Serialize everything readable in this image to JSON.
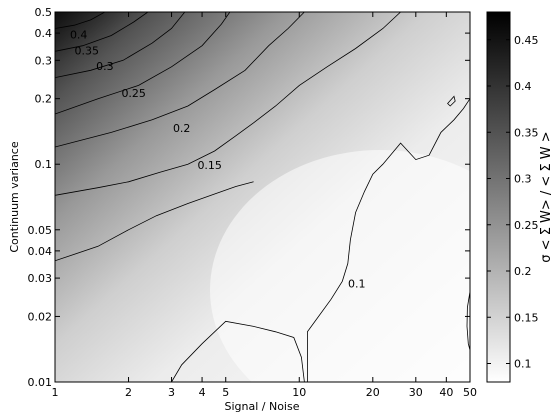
{
  "chart_data": {
    "type": "heatmap",
    "subtype": "filled-contour",
    "xlabel": "Signal / Noise",
    "ylabel": "Continuum variance",
    "x_scale": "log",
    "y_scale": "log",
    "xlim": [
      1,
      50
    ],
    "ylim": [
      0.01,
      0.5
    ],
    "x_ticks": [
      1,
      2,
      3,
      4,
      5,
      10,
      20,
      30,
      40,
      50
    ],
    "x_tick_labels": [
      "1",
      "2",
      "3",
      "4",
      "5",
      "10",
      "20",
      "30",
      "40",
      "50"
    ],
    "y_ticks": [
      0.01,
      0.02,
      0.03,
      0.04,
      0.05,
      0.1,
      0.2,
      0.3,
      0.4,
      0.5
    ],
    "y_tick_labels": [
      "0.01",
      "0.02",
      "0.03",
      "0.04",
      "0.05",
      "0.1",
      "0.2",
      "0.3",
      "0.4",
      "0.5"
    ],
    "colormap": "gray (white = low, black = high)",
    "colorbar": {
      "label": "σ < Σ W> / < Σ W >",
      "range": [
        0.08,
        0.48
      ],
      "ticks": [
        0.1,
        0.15,
        0.2,
        0.25,
        0.3,
        0.35,
        0.4,
        0.45
      ],
      "tick_labels": [
        "0.1",
        "0.15",
        "0.2",
        "0.25",
        "0.3",
        "0.35",
        "0.4",
        "0.45"
      ]
    },
    "contours": [
      {
        "level": 0.4,
        "label": "0.4",
        "label_at": [
          1.25,
          0.39
        ],
        "points": [
          [
            1,
            0.42
          ],
          [
            1.2,
            0.435
          ],
          [
            1.4,
            0.46
          ],
          [
            1.6,
            0.5
          ]
        ]
      },
      {
        "level": 0.35,
        "label": "0.35",
        "label_at": [
          1.35,
          0.33
        ],
        "points": [
          [
            1,
            0.33
          ],
          [
            1.3,
            0.35
          ],
          [
            1.7,
            0.39
          ],
          [
            2.1,
            0.45
          ],
          [
            2.4,
            0.5
          ]
        ]
      },
      {
        "level": 0.3,
        "label": "0.3",
        "label_at": [
          1.6,
          0.28
        ],
        "points": [
          [
            1,
            0.25
          ],
          [
            1.4,
            0.27
          ],
          [
            1.9,
            0.3
          ],
          [
            2.5,
            0.36
          ],
          [
            3.0,
            0.42
          ],
          [
            3.4,
            0.5
          ]
        ]
      },
      {
        "level": 0.25,
        "label": "0.25",
        "label_at": [
          2.1,
          0.21
        ],
        "points": [
          [
            1,
            0.17
          ],
          [
            1.5,
            0.2
          ],
          [
            2.2,
            0.23
          ],
          [
            3.0,
            0.28
          ],
          [
            4.0,
            0.35
          ],
          [
            4.8,
            0.44
          ],
          [
            5.2,
            0.5
          ]
        ]
      },
      {
        "level": 0.2,
        "label": "0.2",
        "label_at": [
          3.3,
          0.145
        ],
        "points": [
          [
            1,
            0.12
          ],
          [
            1.7,
            0.14
          ],
          [
            2.5,
            0.16
          ],
          [
            3.5,
            0.185
          ],
          [
            4.5,
            0.22
          ],
          [
            6.0,
            0.27
          ],
          [
            7.5,
            0.35
          ],
          [
            9.0,
            0.42
          ],
          [
            10.5,
            0.5
          ]
        ]
      },
      {
        "level": 0.15,
        "label": "0.15",
        "label_at": [
          4.3,
          0.098
        ],
        "points": [
          [
            1,
            0.072
          ],
          [
            1.5,
            0.078
          ],
          [
            2.0,
            0.083
          ],
          [
            2.7,
            0.092
          ],
          [
            3.5,
            0.1
          ],
          [
            4.5,
            0.115
          ],
          [
            5.5,
            0.135
          ],
          [
            6.5,
            0.155
          ],
          [
            8.0,
            0.185
          ],
          [
            10.0,
            0.23
          ],
          [
            13.0,
            0.28
          ],
          [
            17.0,
            0.34
          ],
          [
            22.0,
            0.42
          ],
          [
            26.0,
            0.5
          ]
        ]
      },
      {
        "level": 0.1,
        "label": "0.1",
        "label_at": [
          17.2,
          0.028
        ],
        "points": [
          [
            1,
            0.036
          ],
          [
            1.5,
            0.042
          ],
          [
            2.0,
            0.05
          ],
          [
            2.6,
            0.058
          ],
          [
            3.5,
            0.066
          ],
          [
            4.5,
            0.073
          ],
          [
            5.5,
            0.079
          ],
          [
            6.5,
            0.083
          ]
        ]
      },
      {
        "level": 0.1,
        "label": "",
        "label_at": null,
        "points": [
          [
            10.8,
            0.01
          ],
          [
            10.8,
            0.017
          ],
          [
            12.0,
            0.02
          ],
          [
            13.5,
            0.024
          ],
          [
            15.0,
            0.029
          ],
          [
            15.8,
            0.035
          ],
          [
            16.2,
            0.045
          ],
          [
            17.0,
            0.06
          ],
          [
            18.5,
            0.075
          ],
          [
            20.0,
            0.09
          ],
          [
            22.0,
            0.1
          ],
          [
            26.0,
            0.125
          ],
          [
            30.0,
            0.105
          ],
          [
            34.0,
            0.11
          ],
          [
            38.0,
            0.14
          ],
          [
            43.0,
            0.16
          ],
          [
            47.0,
            0.18
          ],
          [
            50.0,
            0.2
          ]
        ]
      },
      {
        "level": 0.1,
        "label": "",
        "label_at": null,
        "points": [
          [
            3.0,
            0.01
          ],
          [
            3.3,
            0.012
          ],
          [
            4.0,
            0.015
          ],
          [
            5.0,
            0.019
          ],
          [
            6.5,
            0.018
          ],
          [
            8.0,
            0.017
          ],
          [
            9.5,
            0.016
          ],
          [
            10.2,
            0.013
          ],
          [
            10.5,
            0.01
          ]
        ]
      },
      {
        "level": 0.1,
        "label": "",
        "label_at": null,
        "closed": true,
        "points": [
          [
            40.5,
            0.19
          ],
          [
            43.0,
            0.205
          ],
          [
            43.5,
            0.195
          ],
          [
            41.5,
            0.185
          ],
          [
            40.5,
            0.19
          ]
        ]
      },
      {
        "level": 0.1,
        "label": "",
        "label_at": null,
        "points": [
          [
            50.0,
            0.026
          ],
          [
            48.8,
            0.022
          ],
          [
            48.6,
            0.018
          ],
          [
            49.2,
            0.015
          ],
          [
            50.0,
            0.014
          ]
        ]
      }
    ]
  }
}
